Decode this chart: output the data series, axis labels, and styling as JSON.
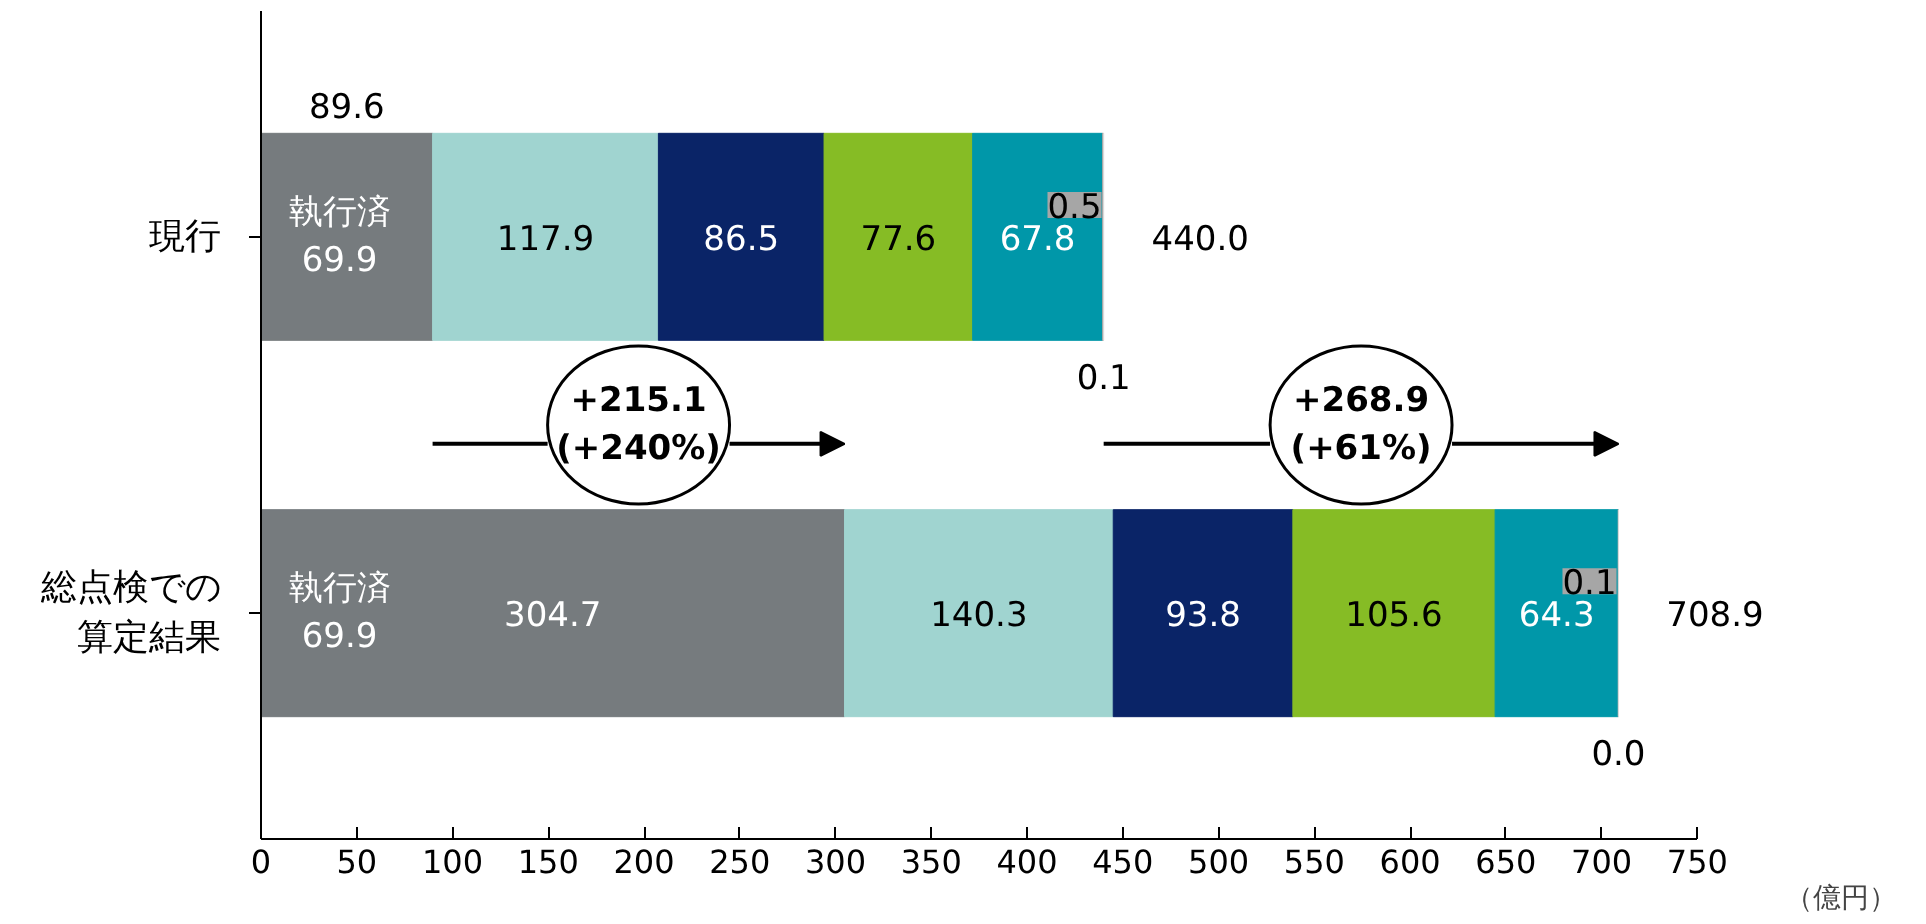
{
  "chart_data": {
    "type": "bar",
    "orientation": "horizontal",
    "stacked": true,
    "categories": [
      "現行",
      "総点検での算定結果"
    ],
    "series": [
      {
        "color": "#767b7e",
        "values": [
          89.6,
          304.7
        ],
        "value_labels": [
          "89.6",
          "304.7"
        ]
      },
      {
        "color": "#a0d4d0",
        "values": [
          117.9,
          140.3
        ],
        "value_labels": [
          "117.9",
          "140.3"
        ]
      },
      {
        "color": "#0a2467",
        "values": [
          86.5,
          93.8
        ],
        "value_labels": [
          "86.5",
          "93.8"
        ]
      },
      {
        "color": "#86bc25",
        "values": [
          77.6,
          105.6
        ],
        "value_labels": [
          "77.6",
          "105.6"
        ]
      },
      {
        "color": "#0097a9",
        "values": [
          67.8,
          64.3
        ],
        "value_labels": [
          "67.8",
          "64.3"
        ]
      },
      {
        "color": "#a6a6a6",
        "values": [
          0.5,
          0.1
        ],
        "value_labels": [
          "0.5",
          "0.1"
        ]
      },
      {
        "color": "#d9d9d9",
        "values": [
          0.1,
          0.0
        ],
        "value_labels": [
          "0.1",
          "0.0"
        ]
      }
    ],
    "totals": [
      "440.0",
      "708.9"
    ],
    "xlim": [
      0,
      750
    ],
    "xticks": [
      0,
      50,
      100,
      150,
      200,
      250,
      300,
      350,
      400,
      450,
      500,
      550,
      600,
      650,
      700,
      750
    ],
    "xlabel": "（億円）",
    "grid": false,
    "annotations": [
      "執行済\n69.9",
      "執行済\n69.9",
      "+215.1\n(+240%)",
      "+268.9\n(+61%)"
    ]
  }
}
